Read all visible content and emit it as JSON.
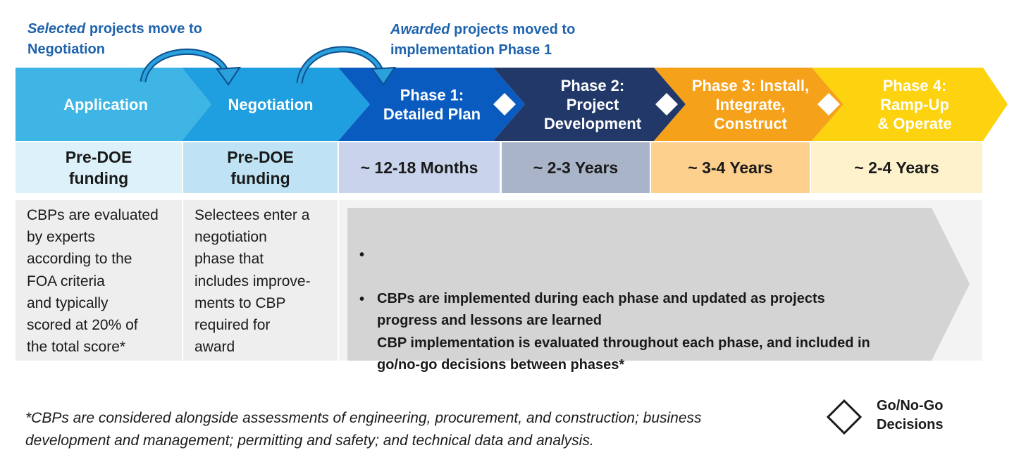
{
  "annotations": {
    "selected": {
      "emph": "Selected",
      "rest": " projects move to",
      "line2": "Negotiation"
    },
    "awarded": {
      "emph": "Awarded",
      "rest": " projects moved to",
      "line2": "implementation Phase 1"
    }
  },
  "phases": [
    {
      "lines": [
        "Application"
      ],
      "color": "#3eb5e4"
    },
    {
      "lines": [
        "Negotiation"
      ],
      "color": "#1f9ee0"
    },
    {
      "lines": [
        "Phase 1:",
        "Detailed Plan"
      ],
      "color": "#0a5bbf"
    },
    {
      "lines": [
        "Phase 2:",
        "Project",
        "Development"
      ],
      "color": "#223868"
    },
    {
      "lines": [
        "Phase 3: Install,",
        "Integrate,",
        "Construct"
      ],
      "color": "#f5a11a"
    },
    {
      "lines": [
        "Phase 4:",
        "Ramp-Up",
        "& Operate"
      ],
      "color": "#fdd20f"
    }
  ],
  "durations": [
    {
      "text": "Pre-DOE\nfunding",
      "color": "#ddf1fa"
    },
    {
      "text": "Pre-DOE\nfunding",
      "color": "#bfe3f4"
    },
    {
      "text": "~ 12-18 Months",
      "color": "#c9d3ec"
    },
    {
      "text": "~ 2-3 Years",
      "color": "#a9b4c8"
    },
    {
      "text": "~ 3-4 Years",
      "color": "#fdd08e"
    },
    {
      "text": "~ 2-4 Years",
      "color": "#fdf2cc"
    }
  ],
  "descriptions": {
    "application": "CBPs are evaluated\nby experts\naccording to the\nFOA criteria\nand typically\nscored at 20% of\nthe total score*",
    "negotiation": "Selectees enter a\nnegotiation\nphase that\nincludes improve-\nments to CBP\nrequired for\naward"
  },
  "bullets": [
    "CBPs are implemented during each phase and updated as projects\nprogress and lessons are learned",
    "CBP implementation is evaluated throughout each phase, and included in\ngo/no-go decisions between phases*"
  ],
  "footnote": "*CBPs are considered alongside assessments of engineering, procurement, and construction; business\ndevelopment and management; permitting and safety; and technical data and analysis.",
  "legend": {
    "label": "Go/No-Go\nDecisions",
    "icon": "diamond-icon"
  },
  "colors": {
    "annotation_text": "#1f63ad",
    "arrow": "#1f8fd0",
    "desc_bg": "#eeeeee",
    "big_arrow": "#d4d4d4"
  }
}
